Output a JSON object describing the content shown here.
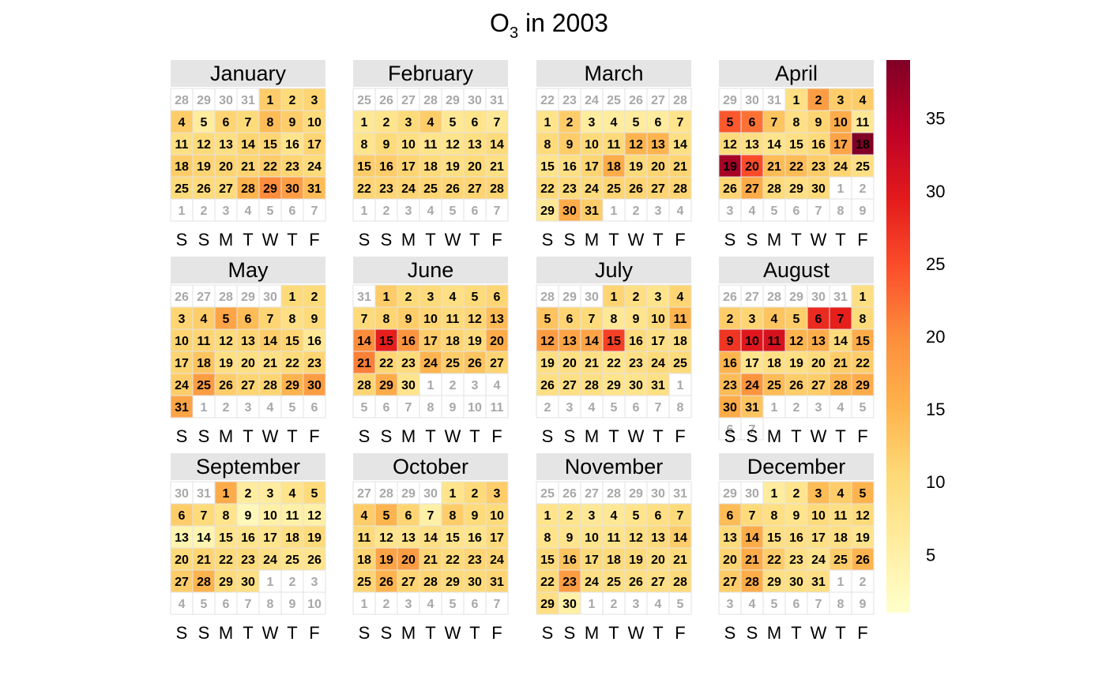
{
  "chart_data": {
    "type": "heatmap",
    "title_main": "O",
    "title_sub": "3",
    "title_rest": " in 2003",
    "year": 2003,
    "weekday_labels": [
      "S",
      "S",
      "M",
      "T",
      "W",
      "T",
      "F"
    ],
    "colorbar": {
      "min": 1,
      "max": 39,
      "ticks": [
        5,
        10,
        15,
        20,
        25,
        30,
        35
      ],
      "colors": [
        "#FFFFCC",
        "#FFEDA0",
        "#FED976",
        "#FEB24C",
        "#FD8D3C",
        "#FC4E2A",
        "#E31A1C",
        "#BD0026",
        "#800026"
      ]
    },
    "months": [
      {
        "name": "January",
        "lead": [
          28,
          29,
          30,
          31
        ],
        "trail": [
          1,
          2,
          3,
          4,
          5,
          6,
          7
        ],
        "values": [
          12,
          10,
          11,
          12,
          6,
          11,
          10,
          14,
          12,
          10,
          9,
          10,
          9,
          11,
          11,
          8,
          11,
          12,
          11,
          11,
          11,
          12,
          11,
          10,
          10,
          10,
          10,
          15,
          20,
          18,
          14
        ]
      },
      {
        "name": "February",
        "lead": [
          25,
          26,
          27,
          28,
          29,
          30,
          31
        ],
        "trail": [
          1,
          2,
          3,
          4,
          5,
          6,
          7
        ],
        "values": [
          7,
          8,
          10,
          12,
          7,
          8,
          7,
          8,
          10,
          9,
          8,
          8,
          9,
          10,
          12,
          12,
          11,
          10,
          9,
          10,
          9,
          11,
          11,
          11,
          11,
          11,
          11,
          11
        ]
      },
      {
        "name": "March",
        "lead": [
          22,
          23,
          24,
          25,
          26,
          27,
          28
        ],
        "trail": [
          1,
          2,
          3,
          4
        ],
        "values": [
          8,
          12,
          6,
          6,
          6,
          6,
          8,
          10,
          12,
          10,
          10,
          15,
          15,
          9,
          8,
          9,
          11,
          16,
          10,
          11,
          11,
          10,
          10,
          10,
          11,
          11,
          11,
          11,
          7,
          16,
          12
        ]
      },
      {
        "name": "April",
        "lead": [
          29,
          30,
          31
        ],
        "trail": [
          1,
          2,
          3,
          4,
          5,
          6,
          7,
          8,
          9
        ],
        "values": [
          9,
          18,
          12,
          12,
          24,
          22,
          13,
          9,
          11,
          16,
          7,
          10,
          9,
          8,
          9,
          10,
          17,
          39,
          36,
          25,
          14,
          14,
          12,
          11,
          9,
          11,
          16,
          10,
          9,
          10
        ]
      },
      {
        "name": "May",
        "lead": [
          26,
          27,
          28,
          29,
          30
        ],
        "trail": [
          1,
          2,
          3,
          4,
          5,
          6
        ],
        "values": [
          10,
          10,
          11,
          12,
          17,
          14,
          11,
          9,
          10,
          11,
          11,
          10,
          11,
          12,
          11,
          7,
          11,
          13,
          9,
          9,
          9,
          10,
          11,
          12,
          18,
          12,
          11,
          11,
          15,
          18,
          17
        ]
      },
      {
        "name": "June",
        "lead": [
          31
        ],
        "trail": [
          1,
          2,
          3,
          4,
          5,
          6,
          7,
          8,
          9,
          10,
          11
        ],
        "values": [
          12,
          10,
          10,
          9,
          10,
          11,
          10,
          11,
          12,
          11,
          10,
          11,
          14,
          20,
          29,
          19,
          12,
          11,
          10,
          16,
          21,
          11,
          10,
          15,
          12,
          13,
          11,
          11,
          16,
          8
        ]
      },
      {
        "name": "July",
        "lead": [
          28,
          29,
          30
        ],
        "trail": [
          1,
          2,
          3,
          4,
          5,
          6,
          7,
          8
        ],
        "values": [
          11,
          9,
          8,
          11,
          13,
          11,
          10,
          7,
          8,
          10,
          15,
          18,
          17,
          17,
          26,
          10,
          9,
          9,
          9,
          9,
          9,
          8,
          9,
          10,
          10,
          9,
          9,
          9,
          8,
          8,
          9
        ]
      },
      {
        "name": "August",
        "lead": [
          26,
          27,
          28,
          29,
          30,
          31
        ],
        "trail": [
          1,
          2,
          3,
          4,
          5,
          6,
          7
        ],
        "values": [
          9,
          12,
          11,
          13,
          12,
          28,
          29,
          10,
          27,
          30,
          31,
          15,
          16,
          10,
          16,
          15,
          8,
          9,
          9,
          10,
          12,
          12,
          14,
          19,
          14,
          12,
          12,
          15,
          16,
          16,
          13
        ]
      },
      {
        "name": "September",
        "lead": [
          30,
          31
        ],
        "trail": [
          1,
          2,
          3,
          4,
          5,
          6,
          7,
          8,
          9,
          10
        ],
        "values": [
          16,
          6,
          6,
          8,
          10,
          12,
          10,
          8,
          3,
          5,
          5,
          5,
          4,
          4,
          8,
          8,
          8,
          9,
          10,
          10,
          11,
          10,
          10,
          9,
          8,
          8,
          12,
          15,
          10,
          9
        ]
      },
      {
        "name": "October",
        "lead": [
          27,
          28,
          29,
          30
        ],
        "trail": [
          1,
          2,
          3,
          4,
          5,
          6,
          7
        ],
        "values": [
          8,
          10,
          12,
          12,
          15,
          11,
          5,
          12,
          10,
          10,
          10,
          8,
          8,
          9,
          8,
          8,
          10,
          11,
          17,
          18,
          11,
          10,
          11,
          11,
          11,
          15,
          11,
          11,
          10,
          10,
          11
        ]
      },
      {
        "name": "November",
        "lead": [
          25,
          26,
          27,
          28,
          29,
          30,
          31
        ],
        "trail": [
          1,
          2,
          3,
          4,
          5
        ],
        "values": [
          8,
          8,
          7,
          7,
          8,
          9,
          10,
          8,
          8,
          8,
          8,
          9,
          10,
          12,
          10,
          13,
          10,
          10,
          10,
          9,
          10,
          10,
          18,
          9,
          9,
          9,
          9,
          10,
          9,
          5
        ]
      },
      {
        "name": "December",
        "lead": [
          29,
          30
        ],
        "trail": [
          1,
          2,
          3,
          4,
          5,
          6,
          7,
          8,
          9
        ],
        "values": [
          6,
          8,
          14,
          12,
          15,
          14,
          10,
          9,
          8,
          10,
          9,
          10,
          10,
          16,
          9,
          9,
          9,
          9,
          8,
          11,
          16,
          12,
          9,
          8,
          12,
          15,
          12,
          16,
          9,
          9,
          9
        ]
      }
    ]
  }
}
